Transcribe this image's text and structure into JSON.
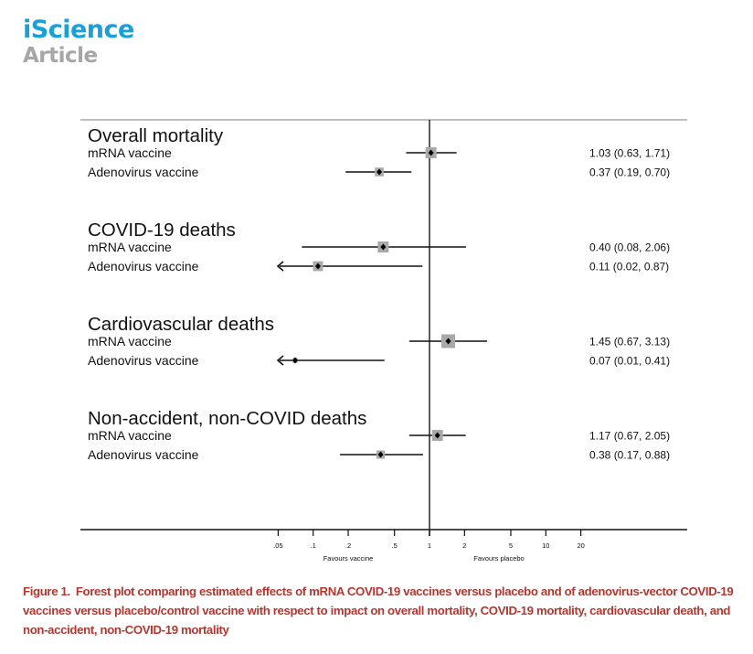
{
  "header": {
    "journal": "iScience",
    "article_type": "Article"
  },
  "chart_data": {
    "type": "forest",
    "title": "",
    "xscale": "log",
    "xlim": [
      0.05,
      20
    ],
    "reference_line": 1,
    "xticks": [
      0.05,
      0.1,
      0.2,
      0.5,
      1,
      2,
      5,
      10,
      20
    ],
    "xtick_labels": [
      ".05",
      ".1",
      ".2",
      ".5",
      "1",
      "2",
      "5",
      "10",
      "20"
    ],
    "xlabel_left": "Favours vaccine",
    "xlabel_right": "Favours placebo",
    "groups": [
      {
        "name": "Overall mortality",
        "rows": [
          {
            "label": "mRNA vaccine",
            "estimate": 1.03,
            "lower": 0.63,
            "upper": 1.71,
            "text": "1.03 (0.63, 1.71)",
            "weight": 1.0,
            "arrow_left": false
          },
          {
            "label": "Adenovirus vaccine",
            "estimate": 0.37,
            "lower": 0.19,
            "upper": 0.7,
            "text": "0.37 (0.19, 0.70)",
            "weight": 0.8,
            "arrow_left": false
          }
        ]
      },
      {
        "name": "COVID-19 deaths",
        "rows": [
          {
            "label": "mRNA vaccine",
            "estimate": 0.4,
            "lower": 0.08,
            "upper": 2.06,
            "text": "0.40 (0.08, 2.06)",
            "weight": 1.0,
            "arrow_left": false
          },
          {
            "label": "Adenovirus vaccine",
            "estimate": 0.11,
            "lower": 0.02,
            "upper": 0.87,
            "text": "0.11 (0.02, 0.87)",
            "weight": 0.9,
            "arrow_left": true
          }
        ]
      },
      {
        "name": "Cardiovascular deaths",
        "rows": [
          {
            "label": "mRNA vaccine",
            "estimate": 1.45,
            "lower": 0.67,
            "upper": 3.13,
            "text": "1.45 (0.67, 3.13)",
            "weight": 1.25,
            "arrow_left": false
          },
          {
            "label": "Adenovirus vaccine",
            "estimate": 0.07,
            "lower": 0.01,
            "upper": 0.41,
            "text": "0.07 (0.01, 0.41)",
            "weight": 0.45,
            "arrow_left": true
          }
        ]
      },
      {
        "name": "Non-accident, non-COVID deaths",
        "rows": [
          {
            "label": "mRNA vaccine",
            "estimate": 1.17,
            "lower": 0.67,
            "upper": 2.05,
            "text": "1.17 (0.67, 2.05)",
            "weight": 1.0,
            "arrow_left": false
          },
          {
            "label": "Adenovirus vaccine",
            "estimate": 0.38,
            "lower": 0.17,
            "upper": 0.88,
            "text": "0.38 (0.17, 0.88)",
            "weight": 0.75,
            "arrow_left": false
          }
        ]
      }
    ]
  },
  "caption": {
    "label": "Figure 1.",
    "text": "Forest plot comparing estimated effects of mRNA COVID-19 vaccines versus placebo and of adenovirus-vector COVID-19 vaccines versus placebo/control vaccine with respect to impact on overall mortality, COVID-19 mortality, cardiovascular death, and non-accident, non-COVID-19 mortality"
  }
}
